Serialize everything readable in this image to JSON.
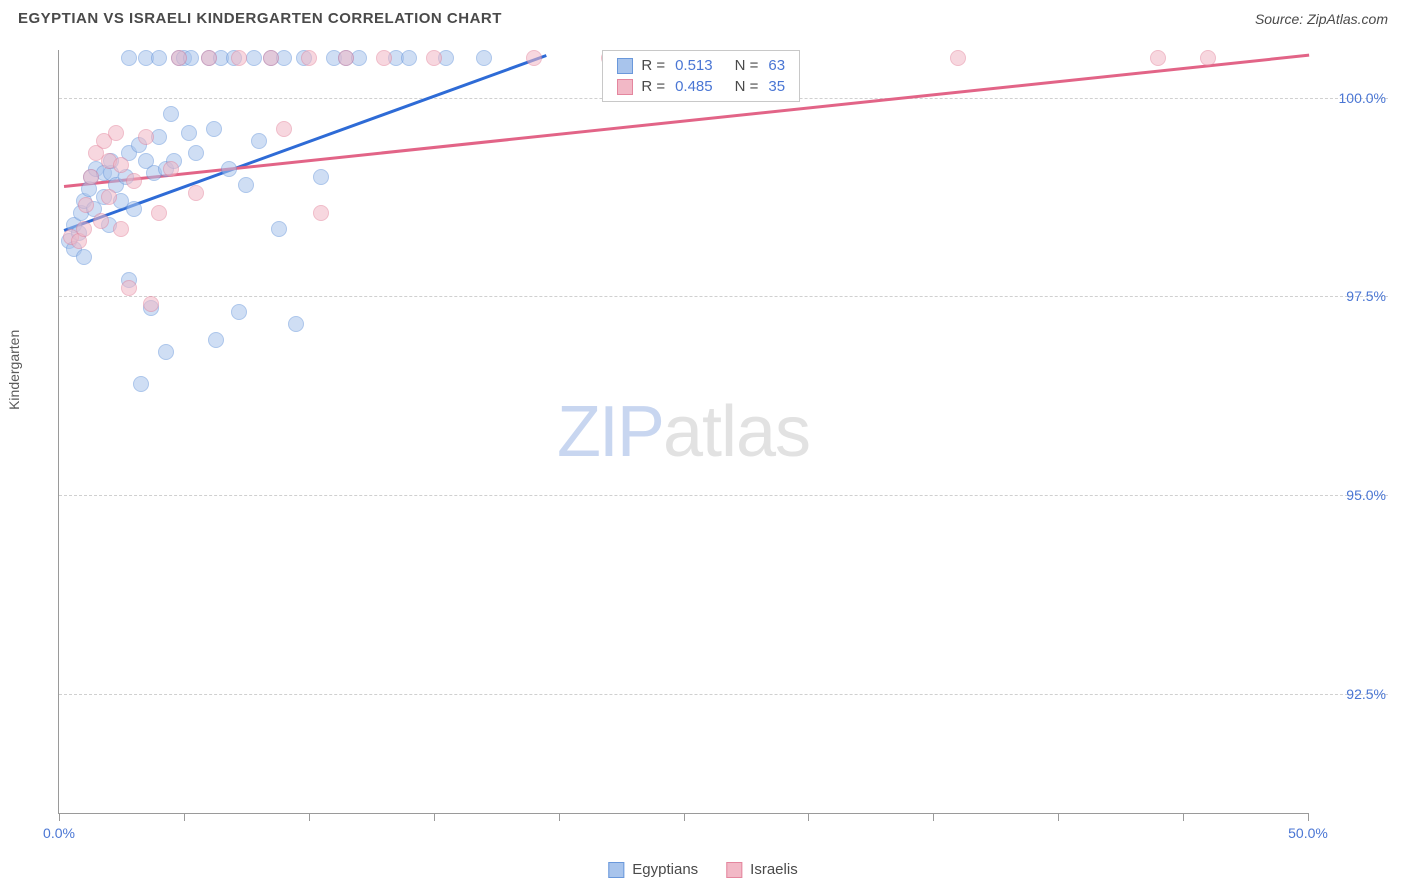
{
  "title": "EGYPTIAN VS ISRAELI KINDERGARTEN CORRELATION CHART",
  "source": "Source: ZipAtlas.com",
  "ylabel": "Kindergarten",
  "watermark": {
    "a": "ZIP",
    "b": "atlas"
  },
  "chart": {
    "type": "scatter",
    "background_color": "#ffffff",
    "grid_color": "#d0d0d0",
    "axis_color": "#9a9a9a",
    "tick_label_color": "#4a76d4",
    "xlim": [
      0,
      50
    ],
    "ylim": [
      91,
      100.6
    ],
    "xtick_positions": [
      0,
      5,
      10,
      15,
      20,
      25,
      30,
      35,
      40,
      45,
      50
    ],
    "xtick_labels": {
      "0": "0.0%",
      "50": "50.0%"
    },
    "ygrid_positions": [
      92.5,
      95.0,
      97.5,
      100.0
    ],
    "ytick_labels": {
      "92.5": "92.5%",
      "95.0": "95.0%",
      "97.5": "97.5%",
      "100.0": "100.0%"
    },
    "point_radius": 8,
    "point_opacity": 0.55,
    "series": [
      {
        "name": "Egyptians",
        "color_fill": "#a8c4ec",
        "color_stroke": "#6a98db",
        "trend_color": "#2e6bd6",
        "trend": {
          "x1": 0.2,
          "y1": 98.35,
          "x2": 19.5,
          "y2": 100.55
        },
        "stats": {
          "R": "0.513",
          "N": "63"
        },
        "points": [
          [
            0.4,
            98.2
          ],
          [
            0.6,
            98.1
          ],
          [
            0.6,
            98.4
          ],
          [
            0.8,
            98.3
          ],
          [
            0.9,
            98.55
          ],
          [
            1.0,
            98.0
          ],
          [
            1.0,
            98.7
          ],
          [
            1.2,
            98.85
          ],
          [
            1.3,
            99.0
          ],
          [
            1.4,
            98.6
          ],
          [
            1.5,
            99.1
          ],
          [
            1.8,
            98.75
          ],
          [
            1.8,
            99.05
          ],
          [
            2.0,
            98.4
          ],
          [
            2.1,
            99.05
          ],
          [
            2.1,
            99.2
          ],
          [
            2.3,
            98.9
          ],
          [
            2.5,
            98.7
          ],
          [
            2.7,
            99.0
          ],
          [
            2.8,
            97.7
          ],
          [
            2.8,
            99.3
          ],
          [
            2.8,
            100.5
          ],
          [
            3.0,
            98.6
          ],
          [
            3.2,
            99.4
          ],
          [
            3.3,
            96.4
          ],
          [
            3.5,
            99.2
          ],
          [
            3.5,
            100.5
          ],
          [
            3.7,
            97.35
          ],
          [
            3.8,
            99.05
          ],
          [
            4.0,
            99.5
          ],
          [
            4.0,
            100.5
          ],
          [
            4.3,
            99.1
          ],
          [
            4.3,
            96.8
          ],
          [
            4.5,
            99.8
          ],
          [
            4.6,
            99.2
          ],
          [
            4.8,
            100.5
          ],
          [
            5.0,
            100.5
          ],
          [
            5.2,
            99.55
          ],
          [
            5.3,
            100.5
          ],
          [
            5.5,
            99.3
          ],
          [
            6.0,
            100.5
          ],
          [
            6.2,
            99.6
          ],
          [
            6.3,
            96.95
          ],
          [
            6.5,
            100.5
          ],
          [
            6.8,
            99.1
          ],
          [
            7.0,
            100.5
          ],
          [
            7.2,
            97.3
          ],
          [
            7.5,
            98.9
          ],
          [
            7.8,
            100.5
          ],
          [
            8.0,
            99.45
          ],
          [
            8.5,
            100.5
          ],
          [
            8.8,
            98.35
          ],
          [
            9.0,
            100.5
          ],
          [
            9.5,
            97.15
          ],
          [
            9.8,
            100.5
          ],
          [
            10.5,
            99.0
          ],
          [
            11.0,
            100.5
          ],
          [
            11.5,
            100.5
          ],
          [
            12.0,
            100.5
          ],
          [
            13.5,
            100.5
          ],
          [
            14.0,
            100.5
          ],
          [
            15.5,
            100.5
          ],
          [
            17.0,
            100.5
          ]
        ]
      },
      {
        "name": "Israelis",
        "color_fill": "#f2b8c6",
        "color_stroke": "#e4869e",
        "trend_color": "#e26487",
        "trend": {
          "x1": 0.2,
          "y1": 98.9,
          "x2": 50,
          "y2": 100.55
        },
        "stats": {
          "R": "0.485",
          "N": "35"
        },
        "points": [
          [
            0.5,
            98.25
          ],
          [
            0.8,
            98.2
          ],
          [
            1.0,
            98.35
          ],
          [
            1.1,
            98.65
          ],
          [
            1.3,
            99.0
          ],
          [
            1.5,
            99.3
          ],
          [
            1.7,
            98.45
          ],
          [
            1.8,
            99.45
          ],
          [
            2.0,
            98.75
          ],
          [
            2.0,
            99.2
          ],
          [
            2.3,
            99.55
          ],
          [
            2.5,
            98.35
          ],
          [
            2.5,
            99.15
          ],
          [
            2.8,
            97.6
          ],
          [
            3.0,
            98.95
          ],
          [
            3.5,
            99.5
          ],
          [
            3.7,
            97.4
          ],
          [
            4.0,
            98.55
          ],
          [
            4.5,
            99.1
          ],
          [
            4.8,
            100.5
          ],
          [
            5.5,
            98.8
          ],
          [
            6.0,
            100.5
          ],
          [
            7.2,
            100.5
          ],
          [
            8.5,
            100.5
          ],
          [
            9.0,
            99.6
          ],
          [
            10.0,
            100.5
          ],
          [
            10.5,
            98.55
          ],
          [
            11.5,
            100.5
          ],
          [
            13.0,
            100.5
          ],
          [
            15.0,
            100.5
          ],
          [
            19.0,
            100.5
          ],
          [
            22.0,
            100.5
          ],
          [
            36.0,
            100.5
          ],
          [
            44.0,
            100.5
          ],
          [
            46.0,
            100.5
          ]
        ]
      }
    ]
  },
  "stats_legend": {
    "left_pct": 43.5,
    "top_pct": 0,
    "rows": [
      {
        "swatch_fill": "#a8c4ec",
        "swatch_stroke": "#6a98db",
        "r_label": "R =",
        "r_val": "0.513",
        "n_label": "N =",
        "n_val": "63"
      },
      {
        "swatch_fill": "#f2b8c6",
        "swatch_stroke": "#e4869e",
        "r_label": "R =",
        "r_val": "0.485",
        "n_label": "N =",
        "n_val": "35"
      }
    ]
  },
  "bottom_legend": [
    {
      "fill": "#a8c4ec",
      "stroke": "#6a98db",
      "label": "Egyptians"
    },
    {
      "fill": "#f2b8c6",
      "stroke": "#e4869e",
      "label": "Israelis"
    }
  ]
}
